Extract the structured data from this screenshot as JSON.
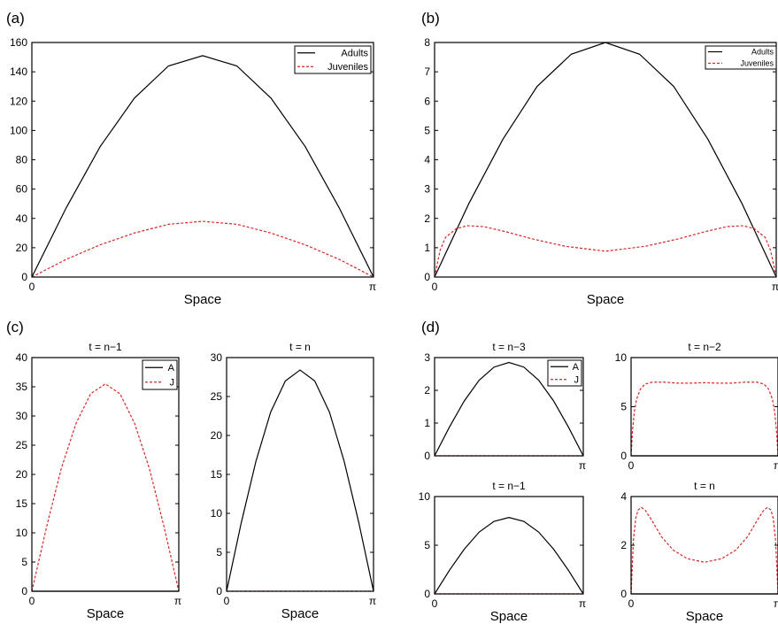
{
  "colors": {
    "adults": "#000000",
    "juveniles": "#d62728"
  },
  "chart_data": [
    {
      "id": "a",
      "panel_label": "(a)",
      "subtitle": "",
      "type": "line",
      "xlim": [
        0,
        3.14159
      ],
      "ylim": [
        0,
        160
      ],
      "yticks": [
        0,
        20,
        40,
        60,
        80,
        100,
        120,
        140,
        160
      ],
      "xticks": [
        {
          "v": 0,
          "label": "0"
        },
        {
          "v": 3.14159,
          "label": "π"
        }
      ],
      "xlabel": "Space",
      "legend_position": "top-right",
      "series": [
        {
          "name": "Adults",
          "style": "solid",
          "x": [
            0,
            0.3142,
            0.6283,
            0.9425,
            1.2566,
            1.5708,
            1.885,
            2.1991,
            2.5133,
            2.8274,
            3.1416
          ],
          "y": [
            0,
            47,
            89,
            122,
            144,
            151,
            144,
            122,
            89,
            47,
            0
          ]
        },
        {
          "name": "Juveniles",
          "style": "dashed",
          "x": [
            0,
            0.3142,
            0.6283,
            0.9425,
            1.2566,
            1.5708,
            1.885,
            2.1991,
            2.5133,
            2.8274,
            3.1416
          ],
          "y": [
            0,
            12,
            22,
            30,
            36,
            38,
            36,
            30,
            22,
            12,
            0
          ]
        }
      ]
    },
    {
      "id": "b",
      "panel_label": "(b)",
      "subtitle": "",
      "type": "line",
      "xlim": [
        0,
        3.14159
      ],
      "ylim": [
        0,
        8
      ],
      "yticks": [
        0,
        1,
        2,
        3,
        4,
        5,
        6,
        7,
        8
      ],
      "xticks": [
        {
          "v": 0,
          "label": "0"
        },
        {
          "v": 3.14159,
          "label": "π"
        }
      ],
      "xlabel": "Space",
      "legend_position": "top-right",
      "series": [
        {
          "name": "Adults",
          "style": "solid",
          "x": [
            0,
            0.3142,
            0.6283,
            0.9425,
            1.2566,
            1.5708,
            1.885,
            2.1991,
            2.5133,
            2.8274,
            3.1416
          ],
          "y": [
            0,
            2.5,
            4.7,
            6.5,
            7.6,
            8.0,
            7.6,
            6.5,
            4.7,
            2.5,
            0
          ]
        },
        {
          "name": "Juveniles",
          "style": "dashed",
          "x": [
            0,
            0.05,
            0.1,
            0.2,
            0.3,
            0.45,
            0.65,
            0.9,
            1.2,
            1.5708,
            1.94,
            2.24,
            2.49,
            2.69,
            2.84,
            2.94,
            3.04,
            3.09,
            3.1416
          ],
          "y": [
            0,
            0.9,
            1.35,
            1.65,
            1.75,
            1.72,
            1.55,
            1.3,
            1.05,
            0.88,
            1.05,
            1.3,
            1.55,
            1.72,
            1.75,
            1.65,
            1.35,
            0.9,
            0
          ]
        }
      ]
    },
    {
      "id": "c1",
      "panel_label": "(c)",
      "subtitle": "t = n−1",
      "type": "line",
      "xlim": [
        0,
        3.14159
      ],
      "ylim": [
        0,
        40
      ],
      "yticks": [
        0,
        5,
        10,
        15,
        20,
        25,
        30,
        35,
        40
      ],
      "xticks": [
        {
          "v": 0,
          "label": "0"
        },
        {
          "v": 3.14159,
          "label": "π"
        }
      ],
      "xlabel": "Space",
      "legend_position": "top-right",
      "series": [
        {
          "name": "A",
          "style": "solid",
          "x": [
            0,
            3.1416
          ],
          "y": [
            0,
            0
          ]
        },
        {
          "name": "J",
          "style": "dashed",
          "x": [
            0,
            0.3142,
            0.6283,
            0.9425,
            1.2566,
            1.5708,
            1.885,
            2.1991,
            2.5133,
            2.8274,
            3.1416
          ],
          "y": [
            0,
            11,
            21,
            28.7,
            33.8,
            35.5,
            33.8,
            28.7,
            21,
            11,
            0
          ]
        }
      ]
    },
    {
      "id": "c2",
      "panel_label": "",
      "subtitle": "t = n",
      "type": "line",
      "xlim": [
        0,
        3.14159
      ],
      "ylim": [
        0,
        30
      ],
      "yticks": [
        0,
        5,
        10,
        15,
        20,
        25,
        30
      ],
      "xticks": [
        {
          "v": 0,
          "label": "0"
        },
        {
          "v": 3.14159,
          "label": "π"
        }
      ],
      "xlabel": "Space",
      "legend_position": "",
      "series": [
        {
          "name": "A",
          "style": "solid",
          "x": [
            0,
            0.3142,
            0.6283,
            0.9425,
            1.2566,
            1.5708,
            1.885,
            2.1991,
            2.5133,
            2.8274,
            3.1416
          ],
          "y": [
            0,
            8.8,
            16.7,
            23,
            27,
            28.4,
            27,
            23,
            16.7,
            8.8,
            0
          ]
        },
        {
          "name": "J",
          "style": "dashed",
          "x": [
            0,
            3.1416
          ],
          "y": [
            0,
            0
          ]
        }
      ]
    },
    {
      "id": "d1",
      "panel_label": "(d)",
      "subtitle": "t = n−3",
      "type": "line",
      "xlim": [
        0,
        3.14159
      ],
      "ylim": [
        0,
        3
      ],
      "yticks": [
        0,
        1,
        2,
        3
      ],
      "xticks": [
        {
          "v": 3.14159,
          "label": "π"
        }
      ],
      "xlabel": "",
      "legend_position": "top-right",
      "series": [
        {
          "name": "A",
          "style": "solid",
          "x": [
            0,
            0.3142,
            0.6283,
            0.9425,
            1.2566,
            1.5708,
            1.885,
            2.1991,
            2.5133,
            2.8274,
            3.1416
          ],
          "y": [
            0,
            0.88,
            1.68,
            2.31,
            2.71,
            2.85,
            2.71,
            2.31,
            1.68,
            0.88,
            0
          ]
        },
        {
          "name": "J",
          "style": "dashed",
          "x": [
            0,
            3.1416
          ],
          "y": [
            0,
            0
          ]
        }
      ]
    },
    {
      "id": "d2",
      "panel_label": "",
      "subtitle": "t = n−2",
      "type": "line",
      "xlim": [
        0,
        3.14159
      ],
      "ylim": [
        0,
        10
      ],
      "yticks": [
        0,
        5,
        10
      ],
      "xticks": [
        {
          "v": 0,
          "label": "0"
        },
        {
          "v": 3.14159,
          "label": "π"
        }
      ],
      "xlabel": "",
      "legend_position": "",
      "series": [
        {
          "name": "A",
          "style": "solid",
          "x": [
            0,
            3.1416
          ],
          "y": [
            0,
            0
          ]
        },
        {
          "name": "J",
          "style": "dashed",
          "x": [
            0,
            0.03,
            0.07,
            0.12,
            0.2,
            0.3,
            0.45,
            0.7,
            1.0,
            1.3,
            1.5708,
            1.85,
            2.14,
            2.44,
            2.69,
            2.84,
            2.94,
            3.02,
            3.07,
            3.11,
            3.1416
          ],
          "y": [
            0,
            2.5,
            4.5,
            5.8,
            6.8,
            7.3,
            7.5,
            7.5,
            7.4,
            7.4,
            7.45,
            7.4,
            7.4,
            7.5,
            7.5,
            7.3,
            6.8,
            5.8,
            4.5,
            2.5,
            0
          ]
        }
      ]
    },
    {
      "id": "d3",
      "panel_label": "",
      "subtitle": "t = n−1",
      "type": "line",
      "xlim": [
        0,
        3.14159
      ],
      "ylim": [
        0,
        10
      ],
      "yticks": [
        0,
        5,
        10
      ],
      "xticks": [
        {
          "v": 0,
          "label": "0"
        },
        {
          "v": 3.14159,
          "label": "π"
        }
      ],
      "xlabel": "Space",
      "legend_position": "",
      "series": [
        {
          "name": "A",
          "style": "solid",
          "x": [
            0,
            0.3142,
            0.6283,
            0.9425,
            1.2566,
            1.5708,
            1.885,
            2.1991,
            2.5133,
            2.8274,
            3.1416
          ],
          "y": [
            0,
            2.43,
            4.6,
            6.35,
            7.45,
            7.85,
            7.45,
            6.35,
            4.6,
            2.43,
            0
          ]
        },
        {
          "name": "J",
          "style": "dashed",
          "x": [
            0,
            3.1416
          ],
          "y": [
            0,
            0
          ]
        }
      ]
    },
    {
      "id": "d4",
      "panel_label": "",
      "subtitle": "t = n",
      "type": "line",
      "xlim": [
        0,
        3.14159
      ],
      "ylim": [
        0,
        4
      ],
      "yticks": [
        0,
        2,
        4
      ],
      "xticks": [
        {
          "v": 0,
          "label": "0"
        },
        {
          "v": 3.14159,
          "label": "π"
        }
      ],
      "xlabel": "Space",
      "legend_position": "",
      "series": [
        {
          "name": "A",
          "style": "solid",
          "x": [
            0,
            3.1416
          ],
          "y": [
            0,
            0
          ]
        },
        {
          "name": "J",
          "style": "dashed",
          "x": [
            0,
            0.05,
            0.1,
            0.15,
            0.22,
            0.3,
            0.45,
            0.65,
            0.9,
            1.2,
            1.5708,
            1.94,
            2.24,
            2.49,
            2.69,
            2.84,
            2.92,
            2.99,
            3.04,
            3.09,
            3.1416
          ],
          "y": [
            0,
            2.2,
            3.1,
            3.45,
            3.55,
            3.45,
            3.0,
            2.35,
            1.8,
            1.45,
            1.3,
            1.45,
            1.8,
            2.35,
            3.0,
            3.45,
            3.55,
            3.45,
            3.1,
            2.2,
            0
          ]
        }
      ]
    }
  ]
}
